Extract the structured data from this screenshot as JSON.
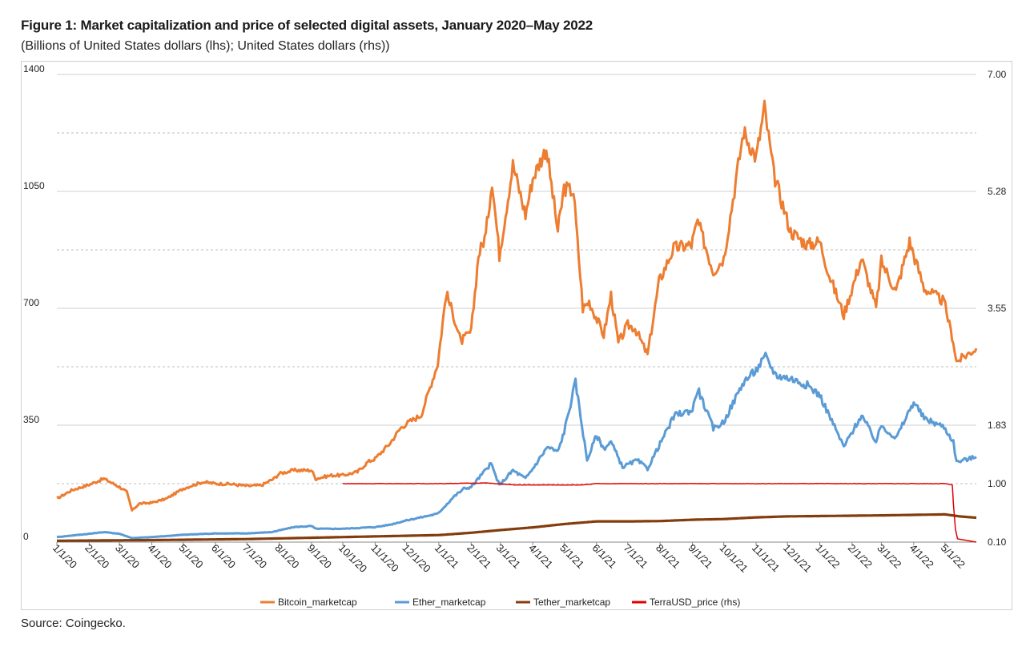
{
  "figure": {
    "title": "Figure 1:  Market capitalization and price of selected digital assets, January 2020–May 2022",
    "subtitle": "(Billions of United States dollars (lhs); United States dollars (rhs))",
    "source": "Source: Coingecko."
  },
  "chart_data": {
    "type": "line",
    "title": "Market capitalization and price of selected digital assets, January 2020–May 2022",
    "ylabel_left": "Billions of United States dollars (lhs)",
    "ylabel_right": "United States dollars (rhs)",
    "y_left": {
      "lim": [
        0,
        1400
      ],
      "ticks": [
        "0",
        "350",
        "700",
        "1050",
        "1400"
      ]
    },
    "y_right": {
      "ticks": [
        "0.10",
        "1.00",
        "1.83",
        "3.55",
        "5.28",
        "7.00"
      ]
    },
    "grid": "horizontal",
    "legend_position": "bottom",
    "x_tick_labels": [
      "1/1/20",
      "2/1/20",
      "3/1/20",
      "4/1/20",
      "5/1/20",
      "6/1/20",
      "7/1/20",
      "8/1/20",
      "9/1/20",
      "10/1/20",
      "11/1/20",
      "12/1/20",
      "1/1/21",
      "2/1/21",
      "3/1/21",
      "4/1/21",
      "5/1/21",
      "6/1/21",
      "7/1/21",
      "8/1/21",
      "9/1/21",
      "10/1/21",
      "11/1/21",
      "12/1/21",
      "1/1/22",
      "2/1/22",
      "3/1/22",
      "4/1/22",
      "5/1/22"
    ],
    "x_range": [
      "2020-01-01",
      "2022-05-31"
    ],
    "series": [
      {
        "name": "Bitcoin_marketcap",
        "axis": "left",
        "color": "#ED7D31",
        "points": [
          [
            "2020-01-01",
            130
          ],
          [
            "2020-01-15",
            155
          ],
          [
            "2020-02-01",
            172
          ],
          [
            "2020-02-15",
            190
          ],
          [
            "2020-03-01",
            165
          ],
          [
            "2020-03-08",
            150
          ],
          [
            "2020-03-13",
            95
          ],
          [
            "2020-03-20",
            115
          ],
          [
            "2020-04-01",
            118
          ],
          [
            "2020-04-15",
            130
          ],
          [
            "2020-05-01",
            160
          ],
          [
            "2020-05-10",
            170
          ],
          [
            "2020-05-20",
            180
          ],
          [
            "2020-06-01",
            175
          ],
          [
            "2020-06-15",
            174
          ],
          [
            "2020-07-01",
            168
          ],
          [
            "2020-07-15",
            170
          ],
          [
            "2020-07-27",
            190
          ],
          [
            "2020-08-01",
            205
          ],
          [
            "2020-08-15",
            215
          ],
          [
            "2020-09-01",
            215
          ],
          [
            "2020-09-05",
            190
          ],
          [
            "2020-09-20",
            200
          ],
          [
            "2020-10-01",
            200
          ],
          [
            "2020-10-15",
            210
          ],
          [
            "2020-10-25",
            240
          ],
          [
            "2020-11-01",
            250
          ],
          [
            "2020-11-15",
            295
          ],
          [
            "2020-11-25",
            340
          ],
          [
            "2020-12-01",
            355
          ],
          [
            "2020-12-15",
            380
          ],
          [
            "2020-12-31",
            535
          ],
          [
            "2021-01-08",
            745
          ],
          [
            "2021-01-15",
            680
          ],
          [
            "2021-01-22",
            600
          ],
          [
            "2021-02-01",
            630
          ],
          [
            "2021-02-08",
            860
          ],
          [
            "2021-02-15",
            920
          ],
          [
            "2021-02-21",
            1085
          ],
          [
            "2021-02-28",
            860
          ],
          [
            "2021-03-13",
            1130
          ],
          [
            "2021-03-25",
            980
          ],
          [
            "2021-04-01",
            1090
          ],
          [
            "2021-04-14",
            1180
          ],
          [
            "2021-04-25",
            930
          ],
          [
            "2021-05-01",
            1060
          ],
          [
            "2021-05-10",
            1050
          ],
          [
            "2021-05-19",
            700
          ],
          [
            "2021-05-25",
            720
          ],
          [
            "2021-06-08",
            620
          ],
          [
            "2021-06-15",
            740
          ],
          [
            "2021-06-22",
            595
          ],
          [
            "2021-07-01",
            650
          ],
          [
            "2021-07-08",
            640
          ],
          [
            "2021-07-20",
            560
          ],
          [
            "2021-07-31",
            780
          ],
          [
            "2021-08-14",
            880
          ],
          [
            "2021-08-31",
            890
          ],
          [
            "2021-09-06",
            960
          ],
          [
            "2021-09-21",
            810
          ],
          [
            "2021-10-01",
            850
          ],
          [
            "2021-10-20",
            1230
          ],
          [
            "2021-11-01",
            1150
          ],
          [
            "2021-11-09",
            1300
          ],
          [
            "2021-11-18",
            1100
          ],
          [
            "2021-12-04",
            930
          ],
          [
            "2021-12-20",
            890
          ],
          [
            "2022-01-01",
            900
          ],
          [
            "2022-01-10",
            800
          ],
          [
            "2022-01-24",
            680
          ],
          [
            "2022-02-10",
            850
          ],
          [
            "2022-02-24",
            700
          ],
          [
            "2022-03-01",
            840
          ],
          [
            "2022-03-15",
            750
          ],
          [
            "2022-03-28",
            900
          ],
          [
            "2022-04-11",
            760
          ],
          [
            "2022-04-30",
            720
          ],
          [
            "2022-05-09",
            600
          ],
          [
            "2022-05-12",
            540
          ],
          [
            "2022-05-31",
            580
          ]
        ]
      },
      {
        "name": "Ether_marketcap",
        "axis": "left",
        "color": "#5B9BD5",
        "points": [
          [
            "2020-01-01",
            15
          ],
          [
            "2020-02-01",
            25
          ],
          [
            "2020-02-15",
            30
          ],
          [
            "2020-03-01",
            25
          ],
          [
            "2020-03-13",
            12
          ],
          [
            "2020-04-01",
            15
          ],
          [
            "2020-05-01",
            22
          ],
          [
            "2020-06-01",
            26
          ],
          [
            "2020-07-01",
            26
          ],
          [
            "2020-07-25",
            30
          ],
          [
            "2020-08-15",
            45
          ],
          [
            "2020-09-01",
            48
          ],
          [
            "2020-09-05",
            40
          ],
          [
            "2020-10-01",
            40
          ],
          [
            "2020-11-01",
            45
          ],
          [
            "2020-11-15",
            52
          ],
          [
            "2020-12-01",
            65
          ],
          [
            "2020-12-31",
            85
          ],
          [
            "2021-01-15",
            135
          ],
          [
            "2021-01-25",
            160
          ],
          [
            "2021-02-01",
            165
          ],
          [
            "2021-02-20",
            235
          ],
          [
            "2021-02-28",
            170
          ],
          [
            "2021-03-13",
            215
          ],
          [
            "2021-03-25",
            190
          ],
          [
            "2021-04-01",
            220
          ],
          [
            "2021-04-15",
            285
          ],
          [
            "2021-04-25",
            270
          ],
          [
            "2021-05-01",
            330
          ],
          [
            "2021-05-12",
            480
          ],
          [
            "2021-05-23",
            245
          ],
          [
            "2021-06-01",
            320
          ],
          [
            "2021-06-08",
            280
          ],
          [
            "2021-06-15",
            300
          ],
          [
            "2021-06-26",
            225
          ],
          [
            "2021-07-10",
            245
          ],
          [
            "2021-07-20",
            220
          ],
          [
            "2021-08-01",
            295
          ],
          [
            "2021-08-15",
            380
          ],
          [
            "2021-09-01",
            395
          ],
          [
            "2021-09-06",
            460
          ],
          [
            "2021-09-21",
            340
          ],
          [
            "2021-10-01",
            360
          ],
          [
            "2021-10-20",
            480
          ],
          [
            "2021-11-01",
            515
          ],
          [
            "2021-11-10",
            555
          ],
          [
            "2021-11-20",
            500
          ],
          [
            "2021-12-04",
            490
          ],
          [
            "2021-12-20",
            470
          ],
          [
            "2022-01-01",
            440
          ],
          [
            "2022-01-10",
            380
          ],
          [
            "2022-01-24",
            285
          ],
          [
            "2022-02-10",
            380
          ],
          [
            "2022-02-24",
            300
          ],
          [
            "2022-03-01",
            350
          ],
          [
            "2022-03-15",
            310
          ],
          [
            "2022-04-01",
            420
          ],
          [
            "2022-04-11",
            370
          ],
          [
            "2022-04-30",
            345
          ],
          [
            "2022-05-09",
            300
          ],
          [
            "2022-05-12",
            240
          ],
          [
            "2022-05-31",
            255
          ]
        ]
      },
      {
        "name": "Tether_marketcap",
        "axis": "left",
        "color": "#843C0C",
        "points": [
          [
            "2020-01-01",
            4
          ],
          [
            "2020-04-01",
            6
          ],
          [
            "2020-07-01",
            9
          ],
          [
            "2020-10-01",
            15
          ],
          [
            "2021-01-01",
            21
          ],
          [
            "2021-02-01",
            28
          ],
          [
            "2021-03-01",
            36
          ],
          [
            "2021-04-01",
            44
          ],
          [
            "2021-05-01",
            54
          ],
          [
            "2021-06-01",
            62
          ],
          [
            "2021-07-01",
            62
          ],
          [
            "2021-08-01",
            63
          ],
          [
            "2021-09-01",
            67
          ],
          [
            "2021-10-01",
            69
          ],
          [
            "2021-11-01",
            74
          ],
          [
            "2021-12-01",
            77
          ],
          [
            "2022-01-01",
            78
          ],
          [
            "2022-03-01",
            80
          ],
          [
            "2022-05-01",
            83
          ],
          [
            "2022-05-15",
            77
          ],
          [
            "2022-05-31",
            73
          ]
        ]
      },
      {
        "name": "TerraUSD_price (rhs)",
        "axis": "right",
        "color": "#E00000",
        "points": [
          [
            "2020-10-01",
            1.0
          ],
          [
            "2021-01-01",
            1.0
          ],
          [
            "2021-02-15",
            1.01
          ],
          [
            "2021-03-15",
            0.98
          ],
          [
            "2021-05-19",
            0.98
          ],
          [
            "2021-06-01",
            1.0
          ],
          [
            "2022-05-01",
            1.0
          ],
          [
            "2022-05-08",
            0.98
          ],
          [
            "2022-05-09",
            0.7
          ],
          [
            "2022-05-11",
            0.3
          ],
          [
            "2022-05-13",
            0.15
          ],
          [
            "2022-05-31",
            0.1
          ]
        ]
      }
    ]
  }
}
